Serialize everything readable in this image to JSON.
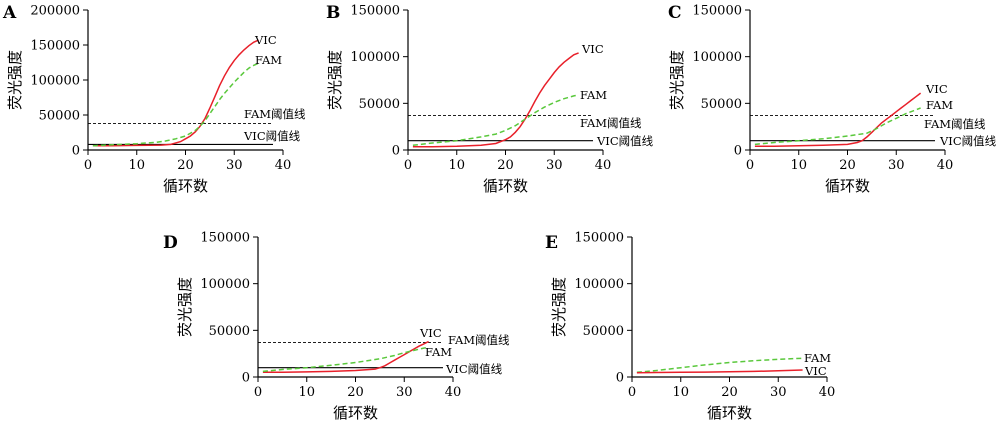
{
  "chart_data": [
    {
      "type": "line",
      "panel": "A",
      "xlabel": "循环数",
      "ylabel": "荧光强度",
      "xlim": [
        0,
        40
      ],
      "ylim": [
        0,
        200000
      ],
      "xticks": [
        0,
        10,
        20,
        30,
        40
      ],
      "yticks": [
        0,
        50000,
        100000,
        150000,
        200000
      ],
      "series": [
        {
          "name": "VIC",
          "color": "#e8202a",
          "dash": "solid",
          "x": [
            1,
            5,
            10,
            15,
            17,
            19,
            20,
            21,
            22,
            23,
            24,
            25,
            26,
            27,
            28,
            29,
            30,
            31,
            32,
            33,
            34,
            35
          ],
          "y": [
            6000,
            6000,
            6500,
            7000,
            8000,
            12000,
            16000,
            20000,
            26000,
            34000,
            45000,
            60000,
            76000,
            92000,
            106000,
            118000,
            128000,
            136000,
            143000,
            149000,
            154000,
            157000
          ]
        },
        {
          "name": "FAM",
          "color": "#5ac83c",
          "dash": "dashed",
          "x": [
            1,
            5,
            10,
            14,
            16,
            18,
            20,
            22,
            23,
            24,
            25,
            26,
            27,
            28,
            29,
            30,
            31,
            32,
            33,
            34,
            35
          ],
          "y": [
            6000,
            7500,
            9000,
            11000,
            13000,
            16000,
            20000,
            28000,
            34000,
            42000,
            52000,
            62000,
            72000,
            81000,
            89000,
            97000,
            104000,
            111000,
            117000,
            121000,
            124000
          ]
        }
      ],
      "thresholds": [
        {
          "label": "FAM阈值线",
          "value": 38000,
          "dash": "dashed"
        },
        {
          "label": "VIC阈值线",
          "value": 8000,
          "dash": "solid"
        }
      ]
    },
    {
      "type": "line",
      "panel": "B",
      "xlabel": "循环数",
      "ylabel": "荧光强度",
      "xlim": [
        0,
        40
      ],
      "ylim": [
        0,
        150000
      ],
      "xticks": [
        0,
        10,
        20,
        30,
        40
      ],
      "yticks": [
        0,
        50000,
        100000,
        150000
      ],
      "series": [
        {
          "name": "VIC",
          "color": "#e8202a",
          "dash": "solid",
          "x": [
            1,
            5,
            10,
            15,
            18,
            20,
            21,
            22,
            23,
            24,
            25,
            26,
            27,
            28,
            29,
            30,
            31,
            32,
            33,
            34,
            35
          ],
          "y": [
            3500,
            3500,
            4000,
            5000,
            7000,
            11000,
            14000,
            19000,
            25000,
            33000,
            42000,
            52000,
            61000,
            69000,
            76000,
            83000,
            89000,
            94000,
            98000,
            102000,
            104000
          ]
        },
        {
          "name": "FAM",
          "color": "#5ac83c",
          "dash": "dashed",
          "x": [
            1,
            5,
            10,
            15,
            18,
            20,
            22,
            24,
            26,
            28,
            30,
            32,
            34,
            35
          ],
          "y": [
            5000,
            7500,
            10000,
            14000,
            17000,
            21000,
            26000,
            33000,
            40000,
            46000,
            51000,
            55000,
            58000,
            59000
          ]
        }
      ],
      "thresholds": [
        {
          "label": "FAM阈值线",
          "value": 37000,
          "dash": "dashed"
        },
        {
          "label": "VIC阈值线",
          "value": 10000,
          "dash": "solid"
        }
      ]
    },
    {
      "type": "line",
      "panel": "C",
      "xlabel": "循环数",
      "ylabel": "荧光强度",
      "xlim": [
        0,
        40
      ],
      "ylim": [
        0,
        150000
      ],
      "xticks": [
        0,
        10,
        20,
        30,
        40
      ],
      "yticks": [
        0,
        50000,
        100000,
        150000
      ],
      "series": [
        {
          "name": "VIC",
          "color": "#e8202a",
          "dash": "solid",
          "x": [
            1,
            5,
            10,
            15,
            20,
            22,
            23,
            24,
            25,
            26,
            27,
            28,
            29,
            30,
            31,
            32,
            33,
            34,
            35
          ],
          "y": [
            4000,
            4000,
            4500,
            5000,
            6000,
            8000,
            10000,
            14000,
            19000,
            24000,
            29000,
            33000,
            37000,
            41000,
            45000,
            49000,
            53000,
            57000,
            61000
          ]
        },
        {
          "name": "FAM",
          "color": "#5ac83c",
          "dash": "dashed",
          "x": [
            1,
            5,
            10,
            15,
            20,
            24,
            26,
            28,
            30,
            32,
            34,
            35
          ],
          "y": [
            6000,
            8000,
            10000,
            12000,
            15000,
            18000,
            23000,
            29000,
            34000,
            39000,
            43000,
            45000
          ]
        }
      ],
      "thresholds": [
        {
          "label": "FAM阈值线",
          "value": 37000,
          "dash": "dashed"
        },
        {
          "label": "VIC阈值线",
          "value": 10000,
          "dash": "solid"
        }
      ]
    },
    {
      "type": "line",
      "panel": "D",
      "xlabel": "循环数",
      "ylabel": "荧光强度",
      "xlim": [
        0,
        40
      ],
      "ylim": [
        0,
        150000
      ],
      "xticks": [
        0,
        10,
        20,
        30,
        40
      ],
      "yticks": [
        0,
        50000,
        100000,
        150000
      ],
      "series": [
        {
          "name": "VIC",
          "color": "#e8202a",
          "dash": "solid",
          "x": [
            1,
            5,
            10,
            15,
            20,
            24,
            25,
            26,
            27,
            28,
            29,
            30,
            31,
            32,
            33,
            34,
            35
          ],
          "y": [
            5000,
            5000,
            5500,
            6000,
            7000,
            8500,
            10000,
            12000,
            15000,
            18000,
            21000,
            24000,
            27000,
            30000,
            33000,
            35500,
            38000
          ]
        },
        {
          "name": "FAM",
          "color": "#5ac83c",
          "dash": "dashed",
          "x": [
            1,
            5,
            10,
            15,
            20,
            25,
            28,
            30,
            32,
            34,
            35
          ],
          "y": [
            6000,
            8000,
            10000,
            12500,
            15500,
            19500,
            23000,
            26000,
            28500,
            31000,
            32000
          ]
        }
      ],
      "thresholds": [
        {
          "label": "FAM阈值线",
          "value": 37000,
          "dash": "dashed"
        },
        {
          "label": "VIC阈值线",
          "value": 10000,
          "dash": "solid"
        }
      ]
    },
    {
      "type": "line",
      "panel": "E",
      "xlabel": "循环数",
      "ylabel": "荧光强度",
      "xlim": [
        0,
        40
      ],
      "ylim": [
        0,
        150000
      ],
      "xticks": [
        0,
        10,
        20,
        30,
        40
      ],
      "yticks": [
        0,
        50000,
        100000,
        150000
      ],
      "series": [
        {
          "name": "FAM",
          "color": "#5ac83c",
          "dash": "dashed",
          "x": [
            1,
            5,
            10,
            15,
            20,
            25,
            30,
            35
          ],
          "y": [
            5000,
            7000,
            10000,
            13000,
            15500,
            17500,
            19000,
            20000
          ]
        },
        {
          "name": "VIC",
          "color": "#e8202a",
          "dash": "solid",
          "x": [
            1,
            5,
            10,
            15,
            20,
            25,
            30,
            35
          ],
          "y": [
            4500,
            4800,
            5000,
            5300,
            5600,
            6000,
            6600,
            7500
          ]
        }
      ],
      "thresholds": []
    }
  ]
}
